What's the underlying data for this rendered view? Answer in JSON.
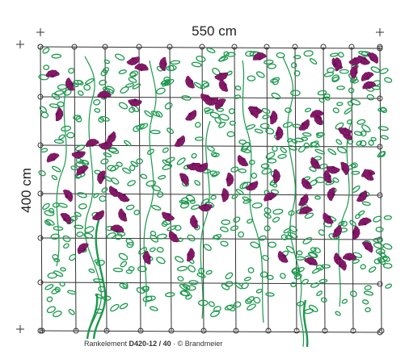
{
  "dimensions": {
    "width": "550 cm",
    "height": "400 cm"
  },
  "caption": {
    "prefix": "Rankelement",
    "code": "D420-12 / 40",
    "suffix": "· © Brandmeier"
  }
}
